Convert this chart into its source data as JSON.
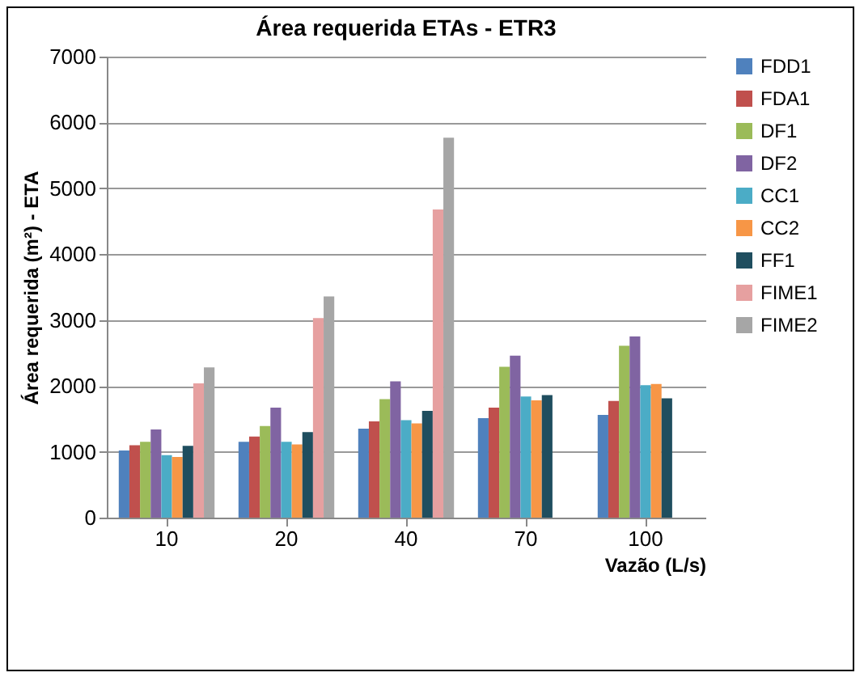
{
  "chart_data": {
    "type": "bar",
    "title": "Área requerida ETAs - ETR3",
    "xlabel": "Vazão (L/s)",
    "ylabel": "Área requerida (m²) - ETA",
    "categories": [
      "10",
      "20",
      "40",
      "70",
      "100"
    ],
    "series": [
      {
        "name": "FDD1",
        "color": "#4f81bd",
        "values": [
          1020,
          1150,
          1350,
          1510,
          1560
        ]
      },
      {
        "name": "FDA1",
        "color": "#c0504d",
        "values": [
          1100,
          1230,
          1460,
          1670,
          1770
        ]
      },
      {
        "name": "DF1",
        "color": "#9bbb59",
        "values": [
          1150,
          1390,
          1800,
          2290,
          2610
        ]
      },
      {
        "name": "DF2",
        "color": "#8064a2",
        "values": [
          1340,
          1670,
          2070,
          2460,
          2750
        ]
      },
      {
        "name": "CC1",
        "color": "#4bacc6",
        "values": [
          950,
          1150,
          1480,
          1840,
          2010
        ]
      },
      {
        "name": "CC2",
        "color": "#f79646",
        "values": [
          920,
          1110,
          1430,
          1780,
          2030
        ]
      },
      {
        "name": "FF1",
        "color": "#1f4e5f",
        "values": [
          1090,
          1300,
          1620,
          1860,
          1810
        ]
      },
      {
        "name": "FIME1",
        "color": "#e6a0a0",
        "values": [
          2040,
          3030,
          4680,
          null,
          null
        ]
      },
      {
        "name": "FIME2",
        "color": "#a6a6a6",
        "values": [
          2280,
          3360,
          5770,
          null,
          null
        ]
      }
    ],
    "ylim": [
      0,
      7000
    ],
    "yticks": [
      0,
      1000,
      2000,
      3000,
      4000,
      5000,
      6000,
      7000
    ],
    "grid": "y",
    "legend": "right"
  }
}
